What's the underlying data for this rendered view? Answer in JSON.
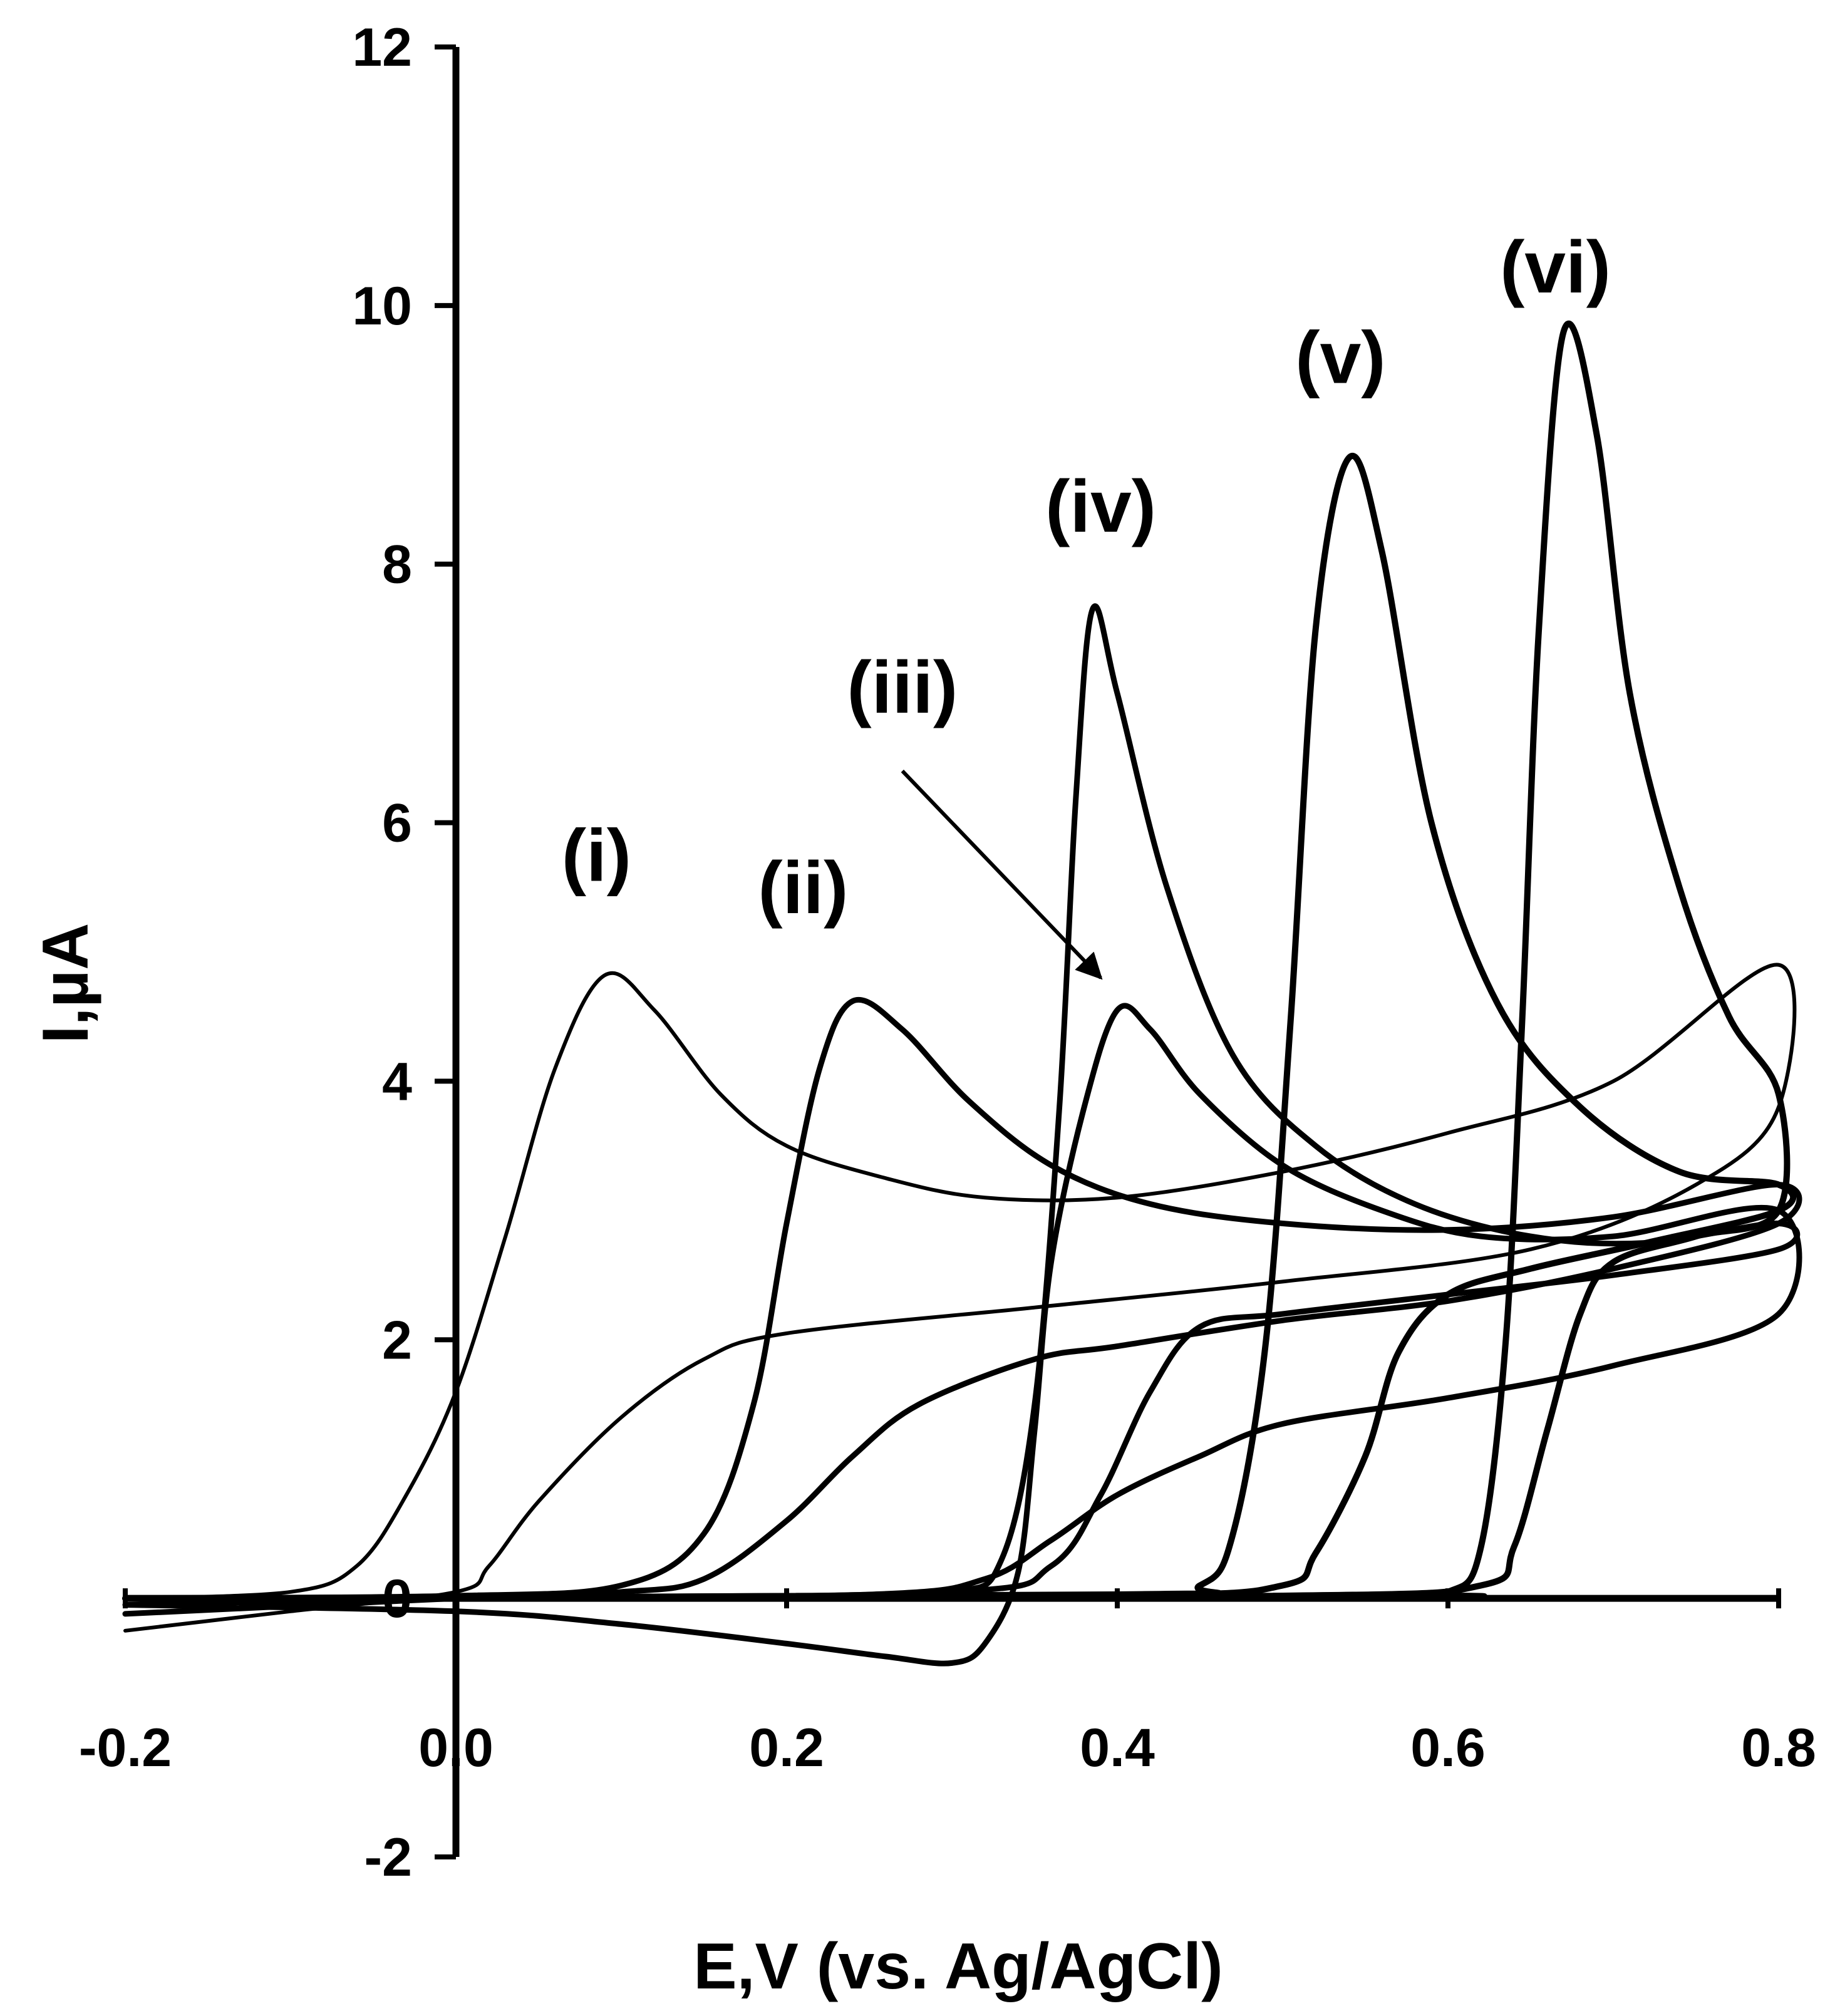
{
  "chart_data": {
    "type": "line",
    "title": "",
    "xlabel": "E,V (vs. Ag/AgCl)",
    "ylabel": "I,µA",
    "xlim": [
      -0.2,
      0.8
    ],
    "ylim": [
      -2,
      12
    ],
    "x_ticks": [
      "-0.2",
      "0.0",
      "0.2",
      "0.4",
      "0.6",
      "0.8"
    ],
    "y_ticks": [
      "-2",
      "0",
      "2",
      "4",
      "6",
      "8",
      "10",
      "12"
    ],
    "grid": false,
    "legend": "none",
    "colors": {
      "line": "#000000",
      "background": "#ffffff"
    },
    "annotation": {
      "label": "(iii)",
      "from": [
        0.27,
        6.4
      ],
      "to": [
        0.39,
        4.8
      ]
    },
    "series": [
      {
        "name": "(i)",
        "label_at": [
          0.085,
          5.55
        ],
        "points": [
          [
            -0.2,
            0.0
          ],
          [
            -0.1,
            0.05
          ],
          [
            -0.06,
            0.25
          ],
          [
            -0.03,
            0.8
          ],
          [
            0.0,
            1.6
          ],
          [
            0.03,
            2.8
          ],
          [
            0.06,
            4.1
          ],
          [
            0.09,
            4.82
          ],
          [
            0.12,
            4.55
          ],
          [
            0.16,
            3.9
          ],
          [
            0.2,
            3.5
          ],
          [
            0.26,
            3.25
          ],
          [
            0.32,
            3.1
          ],
          [
            0.4,
            3.1
          ],
          [
            0.5,
            3.3
          ],
          [
            0.6,
            3.6
          ],
          [
            0.7,
            4.0
          ],
          [
            0.8,
            4.9
          ],
          [
            0.8,
            3.8
          ],
          [
            0.75,
            3.2
          ],
          [
            0.65,
            2.7
          ],
          [
            0.5,
            2.45
          ],
          [
            0.35,
            2.25
          ],
          [
            0.2,
            2.05
          ],
          [
            0.15,
            1.85
          ],
          [
            0.1,
            1.4
          ],
          [
            0.05,
            0.75
          ],
          [
            0.02,
            0.25
          ],
          [
            0.0,
            0.05
          ],
          [
            -0.1,
            -0.1
          ],
          [
            -0.2,
            -0.25
          ]
        ]
      },
      {
        "name": "(ii)",
        "label_at": [
          0.21,
          5.3
        ],
        "points": [
          [
            -0.2,
            0.0
          ],
          [
            0.0,
            0.02
          ],
          [
            0.1,
            0.1
          ],
          [
            0.15,
            0.5
          ],
          [
            0.18,
            1.5
          ],
          [
            0.2,
            2.9
          ],
          [
            0.22,
            4.1
          ],
          [
            0.24,
            4.62
          ],
          [
            0.27,
            4.4
          ],
          [
            0.31,
            3.85
          ],
          [
            0.36,
            3.35
          ],
          [
            0.42,
            3.05
          ],
          [
            0.5,
            2.9
          ],
          [
            0.6,
            2.85
          ],
          [
            0.7,
            2.95
          ],
          [
            0.8,
            3.2
          ],
          [
            0.8,
            2.9
          ],
          [
            0.7,
            2.55
          ],
          [
            0.6,
            2.3
          ],
          [
            0.5,
            2.15
          ],
          [
            0.4,
            1.95
          ],
          [
            0.35,
            1.85
          ],
          [
            0.28,
            1.5
          ],
          [
            0.24,
            1.1
          ],
          [
            0.2,
            0.6
          ],
          [
            0.15,
            0.15
          ],
          [
            0.1,
            0.05
          ],
          [
            0.0,
            0.0
          ],
          [
            -0.2,
            -0.12
          ]
        ]
      },
      {
        "name": "(iii)",
        "label_at": [
          0.27,
          6.85
        ],
        "points": [
          [
            -0.2,
            -0.05
          ],
          [
            0.0,
            -0.1
          ],
          [
            0.1,
            -0.2
          ],
          [
            0.2,
            -0.35
          ],
          [
            0.26,
            -0.45
          ],
          [
            0.3,
            -0.5
          ],
          [
            0.32,
            -0.35
          ],
          [
            0.34,
            0.2
          ],
          [
            0.35,
            1.3
          ],
          [
            0.36,
            2.6
          ],
          [
            0.38,
            3.8
          ],
          [
            0.4,
            4.55
          ],
          [
            0.42,
            4.4
          ],
          [
            0.45,
            3.9
          ],
          [
            0.5,
            3.35
          ],
          [
            0.56,
            3.0
          ],
          [
            0.62,
            2.8
          ],
          [
            0.7,
            2.8
          ],
          [
            0.8,
            3.0
          ],
          [
            0.8,
            2.2
          ],
          [
            0.7,
            1.8
          ],
          [
            0.6,
            1.55
          ],
          [
            0.5,
            1.35
          ],
          [
            0.45,
            1.1
          ],
          [
            0.4,
            0.8
          ],
          [
            0.36,
            0.45
          ],
          [
            0.32,
            0.15
          ],
          [
            0.25,
            0.03
          ],
          [
            0.0,
            0.0
          ],
          [
            -0.2,
            -0.05
          ]
        ]
      },
      {
        "name": "(iv)",
        "label_at": [
          0.39,
          8.25
        ],
        "points": [
          [
            -0.2,
            0.0
          ],
          [
            0.2,
            0.02
          ],
          [
            0.3,
            0.05
          ],
          [
            0.33,
            0.3
          ],
          [
            0.35,
            1.5
          ],
          [
            0.365,
            3.8
          ],
          [
            0.375,
            6.2
          ],
          [
            0.385,
            7.65
          ],
          [
            0.4,
            7.0
          ],
          [
            0.43,
            5.5
          ],
          [
            0.47,
            4.2
          ],
          [
            0.52,
            3.5
          ],
          [
            0.58,
            3.05
          ],
          [
            0.65,
            2.8
          ],
          [
            0.72,
            2.75
          ],
          [
            0.8,
            2.9
          ],
          [
            0.8,
            2.7
          ],
          [
            0.7,
            2.5
          ],
          [
            0.6,
            2.35
          ],
          [
            0.5,
            2.2
          ],
          [
            0.45,
            2.1
          ],
          [
            0.42,
            1.6
          ],
          [
            0.39,
            0.8
          ],
          [
            0.36,
            0.25
          ],
          [
            0.3,
            0.05
          ],
          [
            0.0,
            0.0
          ],
          [
            -0.2,
            0.0
          ]
        ]
      },
      {
        "name": "(v)",
        "label_at": [
          0.535,
          9.4
        ],
        "points": [
          [
            -0.2,
            0.0
          ],
          [
            0.4,
            0.03
          ],
          [
            0.45,
            0.1
          ],
          [
            0.47,
            0.5
          ],
          [
            0.49,
            2.0
          ],
          [
            0.505,
            4.5
          ],
          [
            0.52,
            7.5
          ],
          [
            0.54,
            8.82
          ],
          [
            0.56,
            8.1
          ],
          [
            0.59,
            6.0
          ],
          [
            0.63,
            4.6
          ],
          [
            0.68,
            3.8
          ],
          [
            0.74,
            3.3
          ],
          [
            0.8,
            3.2
          ],
          [
            0.8,
            3.0
          ],
          [
            0.72,
            2.75
          ],
          [
            0.65,
            2.55
          ],
          [
            0.6,
            2.35
          ],
          [
            0.57,
            1.9
          ],
          [
            0.55,
            1.1
          ],
          [
            0.52,
            0.35
          ],
          [
            0.5,
            0.1
          ],
          [
            0.4,
            0.02
          ],
          [
            0.0,
            0.0
          ],
          [
            -0.2,
            0.0
          ]
        ]
      },
      {
        "name": "(vi)",
        "label_at": [
          0.665,
          10.1
        ],
        "points": [
          [
            -0.2,
            0.0
          ],
          [
            0.55,
            0.02
          ],
          [
            0.6,
            0.05
          ],
          [
            0.62,
            0.4
          ],
          [
            0.635,
            2.0
          ],
          [
            0.645,
            4.5
          ],
          [
            0.655,
            7.5
          ],
          [
            0.67,
            9.8
          ],
          [
            0.69,
            9.0
          ],
          [
            0.71,
            7.0
          ],
          [
            0.74,
            5.5
          ],
          [
            0.77,
            4.5
          ],
          [
            0.8,
            3.9
          ],
          [
            0.8,
            3.0
          ],
          [
            0.75,
            2.8
          ],
          [
            0.7,
            2.6
          ],
          [
            0.68,
            2.2
          ],
          [
            0.66,
            1.3
          ],
          [
            0.64,
            0.4
          ],
          [
            0.62,
            0.1
          ],
          [
            0.5,
            0.02
          ],
          [
            0.0,
            0.0
          ],
          [
            -0.2,
            0.0
          ]
        ]
      }
    ]
  }
}
